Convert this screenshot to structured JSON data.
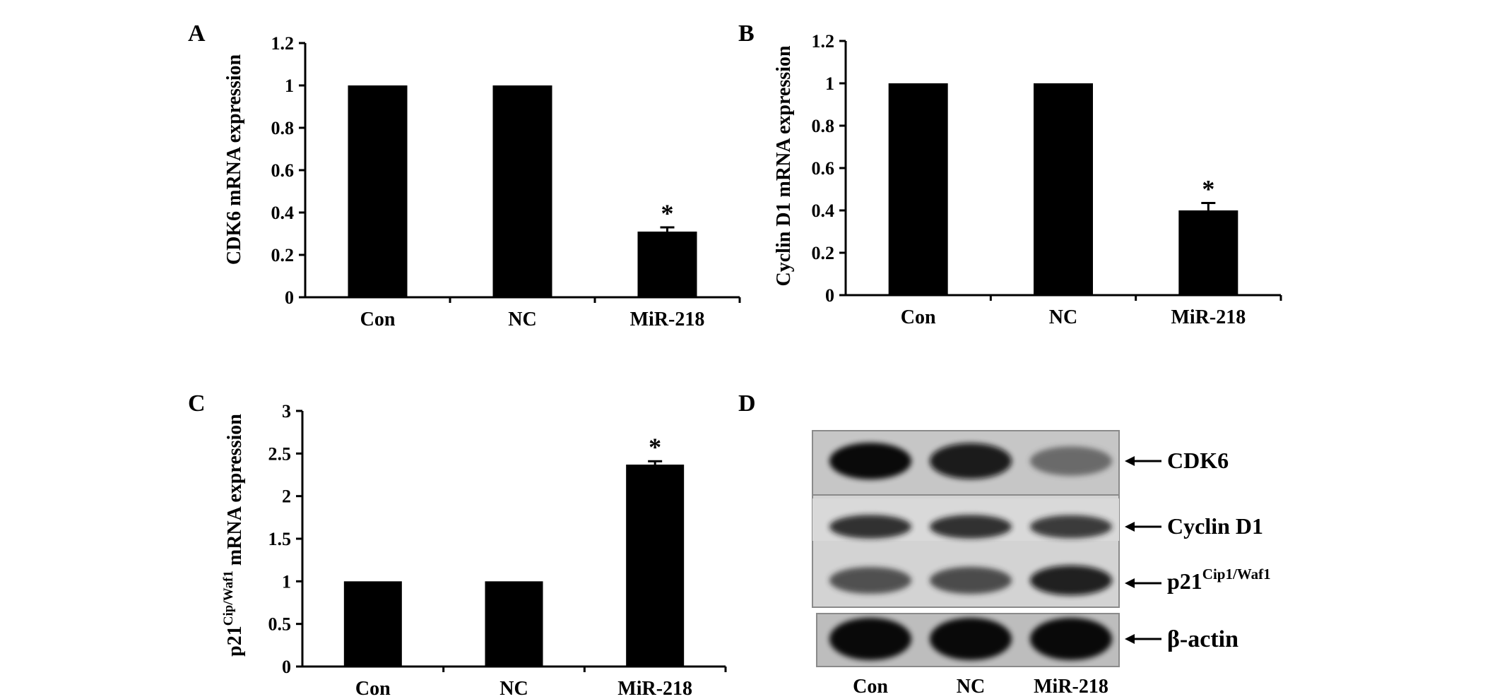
{
  "panel_labels": [
    "A",
    "B",
    "C",
    "D"
  ],
  "chart_data": [
    {
      "panel": "A",
      "type": "bar",
      "categories": [
        "Con",
        "NC",
        "MiR-218"
      ],
      "values": [
        1.0,
        1.0,
        0.31
      ],
      "errors": [
        0,
        0,
        0.02
      ],
      "significance": [
        "",
        "",
        "*"
      ],
      "ylabel": "CDK6 mRNA expression",
      "ylabel_sup": "",
      "ylabel_rest": "",
      "ylim": [
        0,
        1.2
      ],
      "yticks": [
        0,
        0.2,
        0.4,
        0.6,
        0.8,
        1,
        1.2
      ],
      "ytick_labels": [
        "0",
        "0.2",
        "0.4",
        "0.6",
        "0.8",
        "1",
        "1.2"
      ],
      "grid": false,
      "bar_color": "#000000"
    },
    {
      "panel": "B",
      "type": "bar",
      "categories": [
        "Con",
        "NC",
        "MiR-218"
      ],
      "values": [
        1.0,
        1.0,
        0.4
      ],
      "errors": [
        0,
        0,
        0.035
      ],
      "significance": [
        "",
        "",
        "*"
      ],
      "ylabel": "Cyclin D1 mRNA expression",
      "ylabel_sup": "",
      "ylabel_rest": "",
      "ylim": [
        0,
        1.2
      ],
      "yticks": [
        0,
        0.2,
        0.4,
        0.6,
        0.8,
        1,
        1.2
      ],
      "ytick_labels": [
        "0",
        "0.2",
        "0.4",
        "0.6",
        "0.8",
        "1",
        "1.2"
      ],
      "grid": false,
      "bar_color": "#000000"
    },
    {
      "panel": "C",
      "type": "bar",
      "categories": [
        "Con",
        "NC",
        "MiR-218"
      ],
      "values": [
        1.0,
        1.0,
        2.37
      ],
      "errors": [
        0,
        0,
        0.04
      ],
      "significance": [
        "",
        "",
        "*"
      ],
      "ylabel": "p21",
      "ylabel_sup": "Cip/Waf1",
      "ylabel_rest": " mRNA expression",
      "ylim": [
        0,
        3
      ],
      "yticks": [
        0,
        0.5,
        1,
        1.5,
        2,
        2.5,
        3
      ],
      "ytick_labels": [
        "0",
        "0.5",
        "1",
        "1.5",
        "2",
        "2.5",
        "3"
      ],
      "grid": false,
      "bar_color": "#000000"
    }
  ],
  "western_blot": {
    "panel": "D",
    "lanes": [
      "Con",
      "NC",
      "MiR-218"
    ],
    "bands": [
      {
        "label": "CDK6",
        "sup": "",
        "intensity": [
          1.0,
          0.95,
          0.55
        ]
      },
      {
        "label": "Cyclin D1",
        "sup": "",
        "intensity": [
          0.85,
          0.85,
          0.8
        ]
      },
      {
        "label": "p21",
        "sup": "Cip1/Waf1",
        "intensity": [
          0.7,
          0.72,
          0.92
        ]
      },
      {
        "label": "β-actin",
        "sup": "",
        "intensity": [
          1.0,
          1.0,
          1.0
        ]
      }
    ]
  }
}
